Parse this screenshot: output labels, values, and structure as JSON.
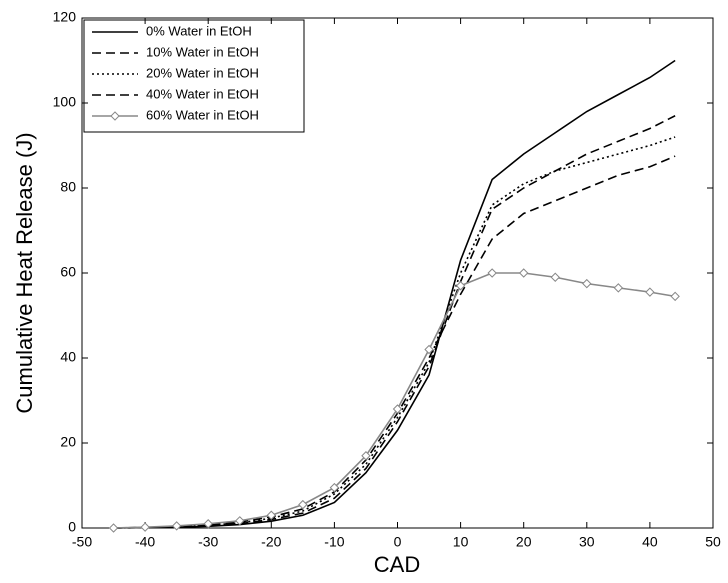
{
  "chart_data": {
    "type": "line",
    "xlabel": "CAD",
    "ylabel": "Cumulative Heat Release (J)",
    "x": [
      -45,
      -40,
      -35,
      -30,
      -25,
      -20,
      -15,
      -10,
      -5,
      0,
      5,
      10,
      15,
      20,
      25,
      30,
      35,
      40,
      44
    ],
    "xlim": [
      -50,
      50
    ],
    "xticks": [
      -50,
      -40,
      -30,
      -20,
      -10,
      0,
      10,
      20,
      30,
      40,
      50
    ],
    "ylim": [
      0,
      120
    ],
    "yticks": [
      0,
      20,
      40,
      60,
      80,
      100,
      120
    ],
    "grid": false,
    "legend": "upper left",
    "series": [
      {
        "name": "0% Water in EtOH",
        "color": "#000000",
        "dash": "solid",
        "marker": "none",
        "values": [
          0,
          0.1,
          0.2,
          0.4,
          0.8,
          1.6,
          3,
          6,
          13,
          23,
          36,
          63,
          82,
          88,
          93,
          98,
          102,
          106,
          110
        ]
      },
      {
        "name": "10% Water in EtOH",
        "color": "#000000",
        "dash": "dashed",
        "marker": "none",
        "values": [
          0,
          0.1,
          0.2,
          0.5,
          1,
          2,
          3.5,
          7,
          14,
          25,
          38,
          58,
          75,
          80,
          84,
          88,
          91,
          94,
          97
        ]
      },
      {
        "name": "20% Water in EtOH",
        "color": "#000000",
        "dash": "dotted",
        "marker": "none",
        "values": [
          0,
          0.1,
          0.3,
          0.6,
          1.2,
          2.3,
          4,
          8,
          15,
          26,
          39,
          60,
          76,
          81,
          84,
          86,
          88,
          90,
          92
        ]
      },
      {
        "name": "40% Water in EtOH",
        "color": "#000000",
        "dash": "dashed",
        "marker": "none",
        "values": [
          0,
          0.1,
          0.3,
          0.7,
          1.4,
          2.6,
          4.5,
          8.5,
          16,
          27,
          40,
          55,
          68,
          74,
          77,
          80,
          83,
          85,
          87.5
        ]
      },
      {
        "name": "60% Water in EtOH",
        "color": "#888888",
        "dash": "solid",
        "marker": "diamond",
        "values": [
          0,
          0.2,
          0.5,
          1,
          1.7,
          3,
          5.5,
          9.5,
          17,
          28,
          42,
          57,
          60,
          60,
          59,
          57.5,
          56.5,
          55.5,
          54.5
        ]
      }
    ]
  }
}
